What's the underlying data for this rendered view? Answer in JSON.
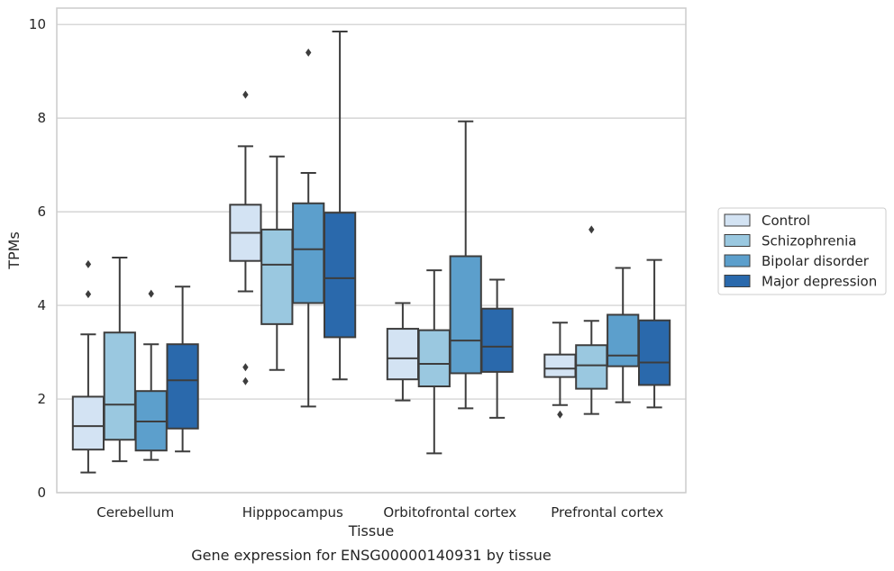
{
  "chart_data": {
    "type": "box",
    "caption": "Gene expression for ENSG00000140931 by tissue",
    "xlabel": "Tissue",
    "ylabel": "TPMs",
    "ylim": [
      0,
      10.35
    ],
    "yticks": [
      0,
      2,
      4,
      6,
      8,
      10
    ],
    "grid": "horizontal",
    "legend_position": "right-center",
    "categories": [
      "Cerebellum",
      "Hipppocampus",
      "Orbitofrontal cortex",
      "Prefrontal cortex"
    ],
    "series": [
      {
        "name": "Control",
        "color": "#d3e3f3",
        "boxes": [
          {
            "whislo": 0.43,
            "q1": 0.92,
            "med": 1.42,
            "q3": 2.05,
            "whishi": 3.38,
            "fliers": [
              4.88,
              4.24
            ]
          },
          {
            "whislo": 4.3,
            "q1": 4.95,
            "med": 5.55,
            "q3": 6.15,
            "whishi": 7.4,
            "fliers": [
              8.5,
              2.68,
              2.38
            ]
          },
          {
            "whislo": 1.97,
            "q1": 2.42,
            "med": 2.87,
            "q3": 3.5,
            "whishi": 4.05,
            "fliers": []
          },
          {
            "whislo": 1.87,
            "q1": 2.47,
            "med": 2.65,
            "q3": 2.95,
            "whishi": 3.63,
            "fliers": [
              1.67
            ]
          }
        ]
      },
      {
        "name": "Schizophrenia",
        "color": "#9ac8e0",
        "boxes": [
          {
            "whislo": 0.67,
            "q1": 1.13,
            "med": 1.88,
            "q3": 3.42,
            "whishi": 5.02,
            "fliers": []
          },
          {
            "whislo": 2.62,
            "q1": 3.6,
            "med": 4.87,
            "q3": 5.62,
            "whishi": 7.18,
            "fliers": []
          },
          {
            "whislo": 0.84,
            "q1": 2.27,
            "med": 2.75,
            "q3": 3.47,
            "whishi": 4.75,
            "fliers": []
          },
          {
            "whislo": 1.68,
            "q1": 2.22,
            "med": 2.72,
            "q3": 3.15,
            "whishi": 3.67,
            "fliers": [
              5.62
            ]
          }
        ]
      },
      {
        "name": "Bipolar disorder",
        "color": "#5c9fcc",
        "boxes": [
          {
            "whislo": 0.7,
            "q1": 0.9,
            "med": 1.52,
            "q3": 2.17,
            "whishi": 3.17,
            "fliers": [
              4.25
            ]
          },
          {
            "whislo": 1.84,
            "q1": 4.05,
            "med": 5.2,
            "q3": 6.18,
            "whishi": 6.83,
            "fliers": [
              9.4
            ]
          },
          {
            "whislo": 1.8,
            "q1": 2.55,
            "med": 3.25,
            "q3": 5.05,
            "whishi": 7.93,
            "fliers": []
          },
          {
            "whislo": 1.93,
            "q1": 2.7,
            "med": 2.93,
            "q3": 3.8,
            "whishi": 4.8,
            "fliers": []
          }
        ]
      },
      {
        "name": "Major depression",
        "color": "#2a69ac",
        "boxes": [
          {
            "whislo": 0.88,
            "q1": 1.37,
            "med": 2.4,
            "q3": 3.17,
            "whishi": 4.4,
            "fliers": []
          },
          {
            "whislo": 2.42,
            "q1": 3.32,
            "med": 4.58,
            "q3": 5.98,
            "whishi": 9.85,
            "fliers": []
          },
          {
            "whislo": 1.6,
            "q1": 2.58,
            "med": 3.12,
            "q3": 3.93,
            "whishi": 4.55,
            "fliers": []
          },
          {
            "whislo": 1.82,
            "q1": 2.3,
            "med": 2.78,
            "q3": 3.68,
            "whishi": 4.97,
            "fliers": []
          }
        ]
      }
    ]
  }
}
